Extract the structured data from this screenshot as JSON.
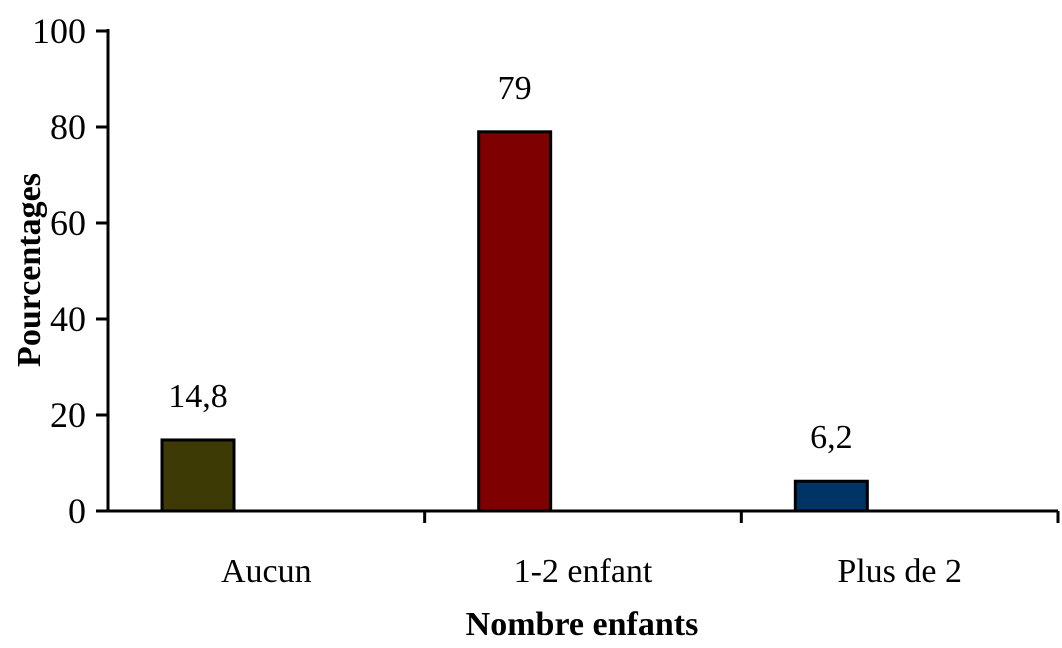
{
  "chart_data": {
    "type": "bar",
    "title": "",
    "xlabel": "Nombre enfants",
    "ylabel": "Pourcentages",
    "categories": [
      "Aucun",
      "1-2 enfant",
      "Plus de 2"
    ],
    "values": [
      14.8,
      79,
      6.2
    ],
    "value_labels": [
      "14,8",
      "79",
      "6,2"
    ],
    "ylim": [
      0,
      100
    ],
    "yticks": [
      0,
      20,
      40,
      60,
      80,
      100
    ],
    "ytick_labels": [
      "0",
      "20",
      "40",
      "60",
      "80",
      "100"
    ],
    "grid": false,
    "legend": "none",
    "colors": [
      "#3d3a06",
      "#7f0000",
      "#003366"
    ]
  }
}
